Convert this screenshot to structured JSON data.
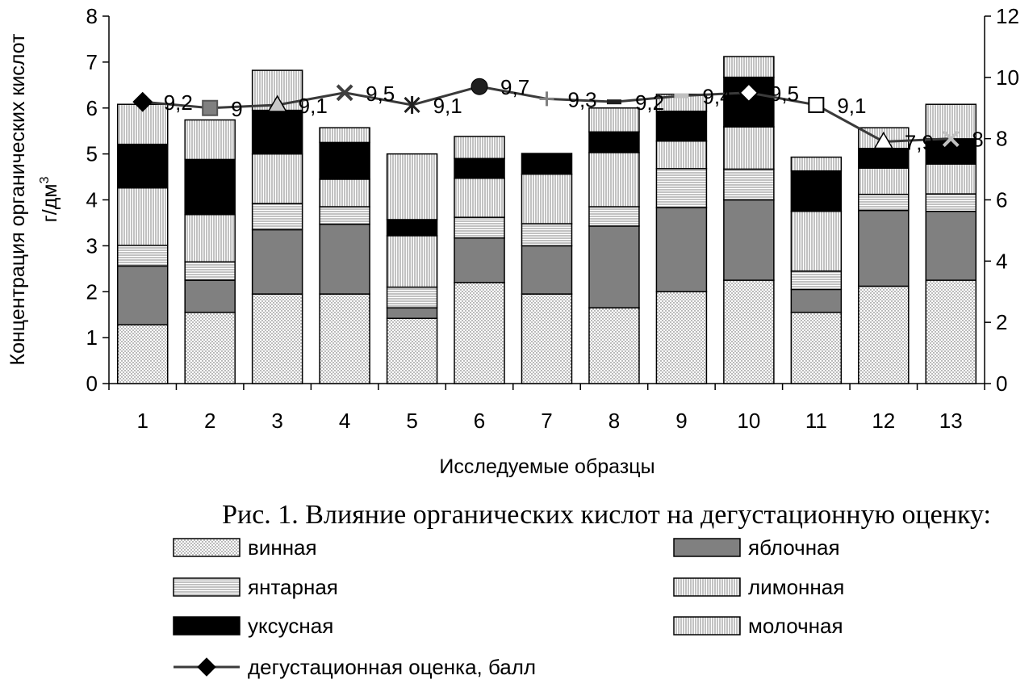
{
  "chart_data": {
    "type": "bar",
    "subtype": "stacked-bar-with-line",
    "caption": "Рис. 1. Влияние органических кислот на дегустационную оценку:",
    "xlabel": "Исследуемые образцы",
    "ylabel_line1": "Концентрация органических кислот",
    "ylabel_line2": "г/дм",
    "ylabel_superscript": "3",
    "categories": [
      "1",
      "2",
      "3",
      "4",
      "5",
      "6",
      "7",
      "8",
      "9",
      "10",
      "11",
      "12",
      "13"
    ],
    "left_axis": {
      "ylim": [
        0,
        8
      ],
      "ticks": [
        "0",
        "1",
        "2",
        "3",
        "4",
        "5",
        "6",
        "7",
        "8"
      ]
    },
    "right_axis": {
      "ylim": [
        0,
        12
      ],
      "ticks": [
        "0",
        "2",
        "4",
        "6",
        "8",
        "10",
        "12"
      ]
    },
    "series": [
      {
        "name": "винная",
        "values": [
          1.28,
          1.55,
          1.95,
          1.95,
          1.42,
          2.2,
          1.95,
          1.65,
          2.0,
          2.25,
          1.55,
          2.12,
          2.25
        ],
        "fill": "#e4e4e4",
        "pattern": "dots"
      },
      {
        "name": "яблочная",
        "values": [
          1.28,
          0.7,
          1.4,
          1.52,
          0.23,
          0.97,
          1.05,
          1.78,
          1.83,
          1.75,
          0.5,
          1.65,
          1.5
        ],
        "fill": "#808080",
        "pattern": "solid"
      },
      {
        "name": "янтарная",
        "values": [
          0.45,
          0.4,
          0.57,
          0.38,
          0.45,
          0.45,
          0.48,
          0.42,
          0.85,
          0.67,
          0.4,
          0.35,
          0.38
        ],
        "fill": "#f4f4f4",
        "pattern": "hlines"
      },
      {
        "name": "лимонная",
        "values": [
          1.25,
          1.03,
          1.08,
          0.6,
          1.12,
          0.85,
          1.08,
          1.18,
          0.6,
          0.92,
          1.3,
          0.57,
          0.65
        ],
        "fill": "#f0f0f0",
        "pattern": "vlines"
      },
      {
        "name": "уксусная",
        "values": [
          0.95,
          1.2,
          0.95,
          0.8,
          0.35,
          0.43,
          0.45,
          0.45,
          0.65,
          1.08,
          0.88,
          0.43,
          0.55
        ],
        "fill": "#000000",
        "pattern": "solid"
      },
      {
        "name": "молочная",
        "values": [
          0.87,
          0.86,
          0.87,
          0.32,
          1.43,
          0.48,
          0.0,
          0.52,
          0.37,
          0.45,
          0.3,
          0.45,
          0.75
        ],
        "fill": "#f8f8f8",
        "pattern": "vlines"
      }
    ],
    "line_series": {
      "name": "дегустационная оценка, балл",
      "values": [
        9.2,
        9.0,
        9.1,
        9.5,
        9.1,
        9.7,
        9.3,
        9.2,
        9.4,
        9.5,
        9.1,
        7.9,
        8.0
      ],
      "labels": [
        "9,2",
        "9",
        "9,1",
        "9,5",
        "9,1",
        "9,7",
        "9,3",
        "9,2",
        "9,4",
        "9,5",
        "9,1",
        "7,9",
        "8"
      ],
      "markers": [
        "diamond",
        "square",
        "triangle",
        "x",
        "star",
        "circle",
        "plus",
        "dash",
        "dash",
        "diamond-white",
        "square-white",
        "triangle-white",
        "x"
      ],
      "marker_colors": [
        "#000000",
        "#808080",
        "#c8c8c8",
        "#404040",
        "#202020",
        "#202020",
        "#808080",
        "#202020",
        "#c0c0c0",
        "#ffffff",
        "#ffffff",
        "#ffffff",
        "#c0c0c0"
      ]
    },
    "legend_items": [
      {
        "label": "винная",
        "pattern": "dots",
        "fill": "#e4e4e4"
      },
      {
        "label": "яблочная",
        "pattern": "solid",
        "fill": "#808080"
      },
      {
        "label": "янтарная",
        "pattern": "hlines",
        "fill": "#f4f4f4"
      },
      {
        "label": "лимонная",
        "pattern": "vlines",
        "fill": "#f0f0f0"
      },
      {
        "label": "уксусная",
        "pattern": "solid",
        "fill": "#000000"
      },
      {
        "label": "молочная",
        "pattern": "vlines",
        "fill": "#f8f8f8"
      },
      {
        "label": "дегустационная оценка, балл",
        "pattern": "line",
        "fill": "#000000"
      }
    ],
    "legend_placement": "bottom",
    "grid": false
  }
}
